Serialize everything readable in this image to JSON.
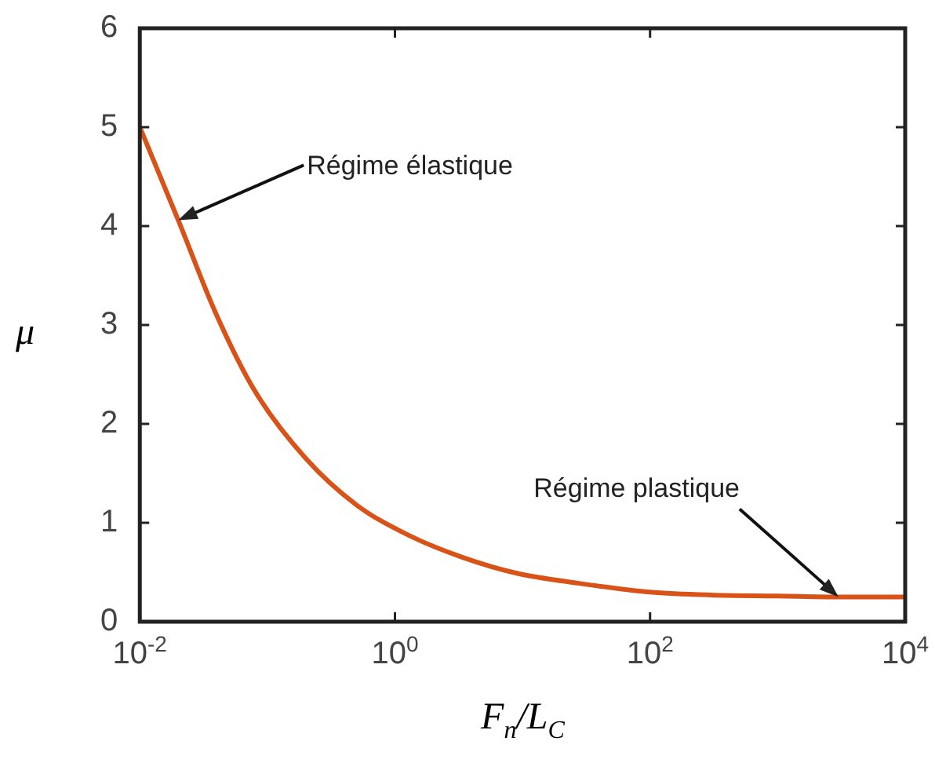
{
  "chart_data": {
    "type": "line",
    "xlabel": "F$_{n}$/L$_{C}$",
    "ylabel": "μ",
    "log": "x",
    "x": [
      0.01,
      0.02,
      0.04,
      0.08,
      0.2,
      0.5,
      1.3,
      3.4,
      9,
      27,
      100,
      300,
      1000,
      3000,
      10000
    ],
    "series": [
      {
        "color": "#d95319",
        "values": [
          5.0,
          4.06,
          3.1,
          2.33,
          1.65,
          1.18,
          0.87,
          0.65,
          0.49,
          0.39,
          0.3,
          0.27,
          0.26,
          0.25,
          0.25
        ]
      }
    ],
    "xlim": [
      0.01,
      10000
    ],
    "xticks": [
      {
        "value": 0.01,
        "label": "10$^{-2}$"
      },
      {
        "value": 1,
        "label": "10$^{0}$"
      },
      {
        "value": 100,
        "label": "10$^{2}$"
      },
      {
        "value": 10000,
        "label": "10$^{4}$"
      }
    ],
    "ylim": [
      0,
      6
    ],
    "yticks": [
      0,
      1,
      2,
      3,
      4,
      5,
      6
    ],
    "grid": false,
    "legend": false,
    "marker": "none",
    "line_style": "solid",
    "annotations": [
      {
        "text": "Régime élastique",
        "x": 0.02,
        "y": 4.06
      },
      {
        "text": "Régime plastique",
        "x": 3000,
        "y": 0.25
      }
    ]
  }
}
